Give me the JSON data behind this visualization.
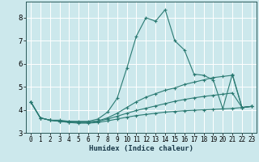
{
  "xlabel": "Humidex (Indice chaleur)",
  "background_color": "#cce8ec",
  "grid_color": "#b8d8dc",
  "line_color": "#2a7a72",
  "xlim": [
    -0.5,
    23.5
  ],
  "ylim": [
    3.0,
    8.7
  ],
  "yticks": [
    3,
    4,
    5,
    6,
    7,
    8
  ],
  "xticks": [
    0,
    1,
    2,
    3,
    4,
    5,
    6,
    7,
    8,
    9,
    10,
    11,
    12,
    13,
    14,
    15,
    16,
    17,
    18,
    19,
    20,
    21,
    22,
    23
  ],
  "lines": [
    {
      "x": [
        0,
        1,
        2,
        3,
        4,
        5,
        6,
        7,
        8,
        9,
        10,
        11,
        12,
        13,
        14,
        15,
        16,
        17,
        18,
        19,
        20,
        21,
        22,
        23
      ],
      "y": [
        4.35,
        3.65,
        3.55,
        3.55,
        3.5,
        3.5,
        3.5,
        3.6,
        3.9,
        4.5,
        5.8,
        7.2,
        8.0,
        7.85,
        8.35,
        7.0,
        6.6,
        5.55,
        5.5,
        5.3,
        4.05,
        5.55,
        4.1,
        4.15
      ]
    },
    {
      "x": [
        0,
        1,
        2,
        3,
        4,
        5,
        6,
        7,
        8,
        9,
        10,
        11,
        12,
        13,
        14,
        15,
        16,
        17,
        18,
        19,
        20,
        21,
        22,
        23
      ],
      "y": [
        4.35,
        3.65,
        3.55,
        3.5,
        3.5,
        3.47,
        3.47,
        3.52,
        3.65,
        3.85,
        4.1,
        4.35,
        4.55,
        4.7,
        4.85,
        4.95,
        5.1,
        5.2,
        5.3,
        5.4,
        5.45,
        5.5,
        4.1,
        4.15
      ]
    },
    {
      "x": [
        0,
        1,
        2,
        3,
        4,
        5,
        6,
        7,
        8,
        9,
        10,
        11,
        12,
        13,
        14,
        15,
        16,
        17,
        18,
        19,
        20,
        21,
        22,
        23
      ],
      "y": [
        4.35,
        3.65,
        3.55,
        3.5,
        3.47,
        3.45,
        3.45,
        3.5,
        3.6,
        3.72,
        3.85,
        3.97,
        4.07,
        4.17,
        4.27,
        4.37,
        4.45,
        4.52,
        4.58,
        4.63,
        4.68,
        4.73,
        4.1,
        4.15
      ]
    },
    {
      "x": [
        0,
        1,
        2,
        3,
        4,
        5,
        6,
        7,
        8,
        9,
        10,
        11,
        12,
        13,
        14,
        15,
        16,
        17,
        18,
        19,
        20,
        21,
        22,
        23
      ],
      "y": [
        4.35,
        3.65,
        3.55,
        3.5,
        3.45,
        3.42,
        3.42,
        3.45,
        3.52,
        3.6,
        3.68,
        3.75,
        3.8,
        3.85,
        3.9,
        3.93,
        3.96,
        3.98,
        4.0,
        4.02,
        4.04,
        4.06,
        4.1,
        4.15
      ]
    }
  ]
}
